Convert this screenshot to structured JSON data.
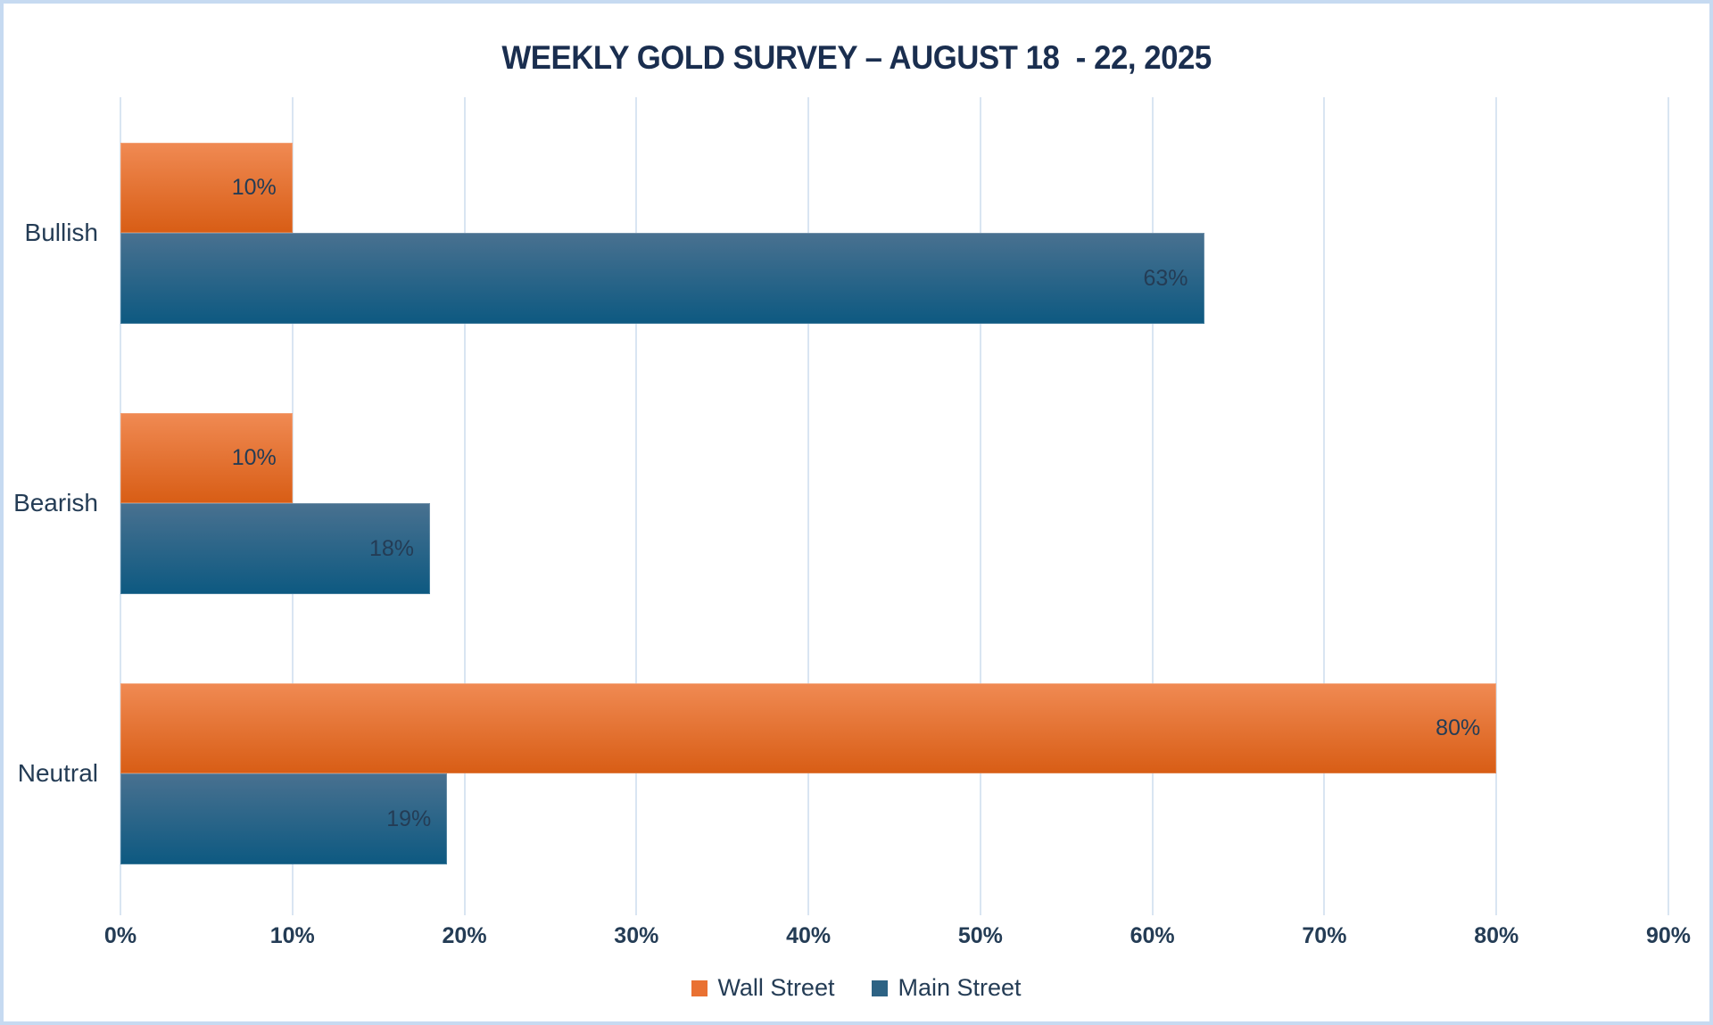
{
  "title": "WEEKLY GOLD SURVEY – AUGUST 18  - 22, 2025",
  "frame": {
    "border_color": "#c6daf1",
    "background_color": "#ffffff"
  },
  "chart_data": {
    "type": "bar",
    "orientation": "horizontal",
    "title": "WEEKLY GOLD SURVEY – AUGUST 18  - 22, 2025",
    "categories": [
      "Bullish",
      "Bearish",
      "Neutral"
    ],
    "series": [
      {
        "name": "Wall Street",
        "values": [
          10,
          10,
          80
        ],
        "labels": [
          "10%",
          "10%",
          "80%"
        ],
        "color_top": "#f08a53",
        "color_bottom": "#d85d15",
        "legend_color": "#e97132"
      },
      {
        "name": "Main Street",
        "values": [
          63,
          18,
          19
        ],
        "labels": [
          "63%",
          "18%",
          "19%"
        ],
        "color_top": "#497190",
        "color_bottom": "#0d5981",
        "legend_color": "#2d6384"
      }
    ],
    "xlabel": "",
    "ylabel": "",
    "xlim": [
      0,
      90
    ],
    "x_ticks": [
      "0%",
      "10%",
      "20%",
      "30%",
      "40%",
      "50%",
      "60%",
      "70%",
      "80%",
      "90%"
    ],
    "grid": true,
    "grid_color": "#d9e5f2",
    "legend_position": "bottom",
    "data_label_position": "inside-end",
    "text_color": "#243c55",
    "title_color": "#1a2e4f"
  }
}
